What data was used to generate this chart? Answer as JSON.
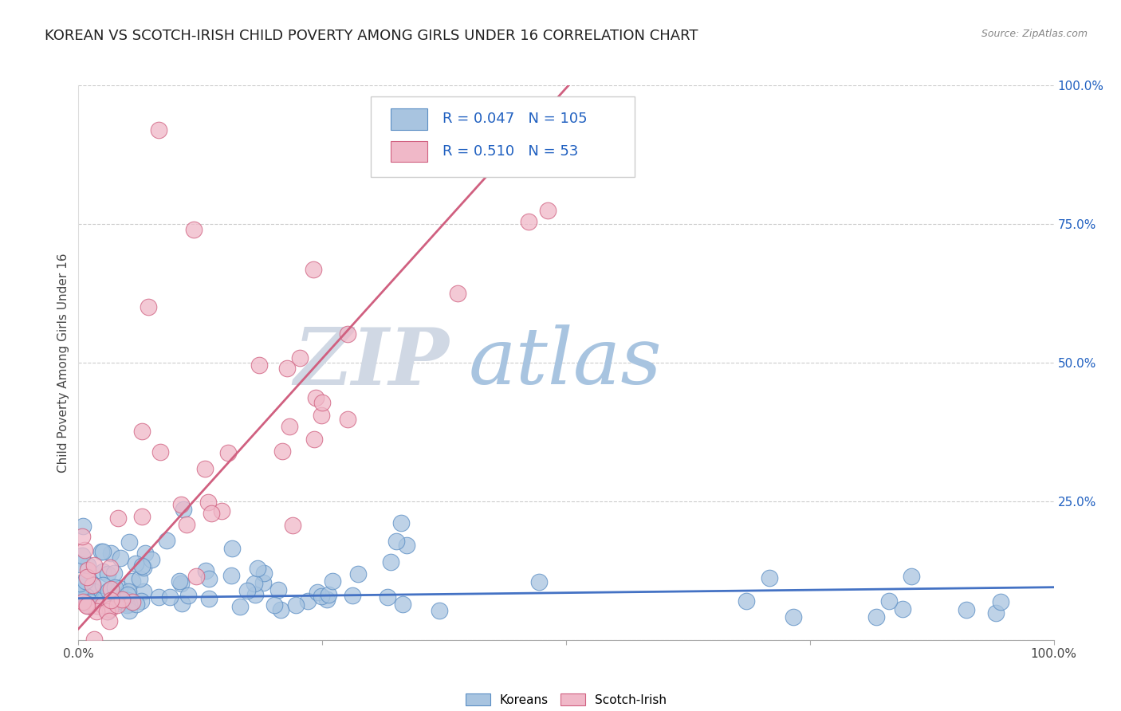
{
  "title": "KOREAN VS SCOTCH-IRISH CHILD POVERTY AMONG GIRLS UNDER 16 CORRELATION CHART",
  "source": "Source: ZipAtlas.com",
  "ylabel": "Child Poverty Among Girls Under 16",
  "korean_color": "#a8c4e0",
  "korean_edge_color": "#5b8ec4",
  "scotch_color": "#f0b8c8",
  "scotch_edge_color": "#d06080",
  "korean_line_color": "#4472c4",
  "scotch_line_color": "#d06080",
  "korean_R": 0.047,
  "korean_N": 105,
  "scotch_R": 0.51,
  "scotch_N": 53,
  "watermark_zip": "ZIP",
  "watermark_atlas": "atlas",
  "watermark_zip_color": "#d0d8e4",
  "watermark_atlas_color": "#a8c4e0",
  "legend_color": "#2060c0",
  "background_color": "#ffffff",
  "title_fontsize": 13,
  "label_fontsize": 11,
  "tick_fontsize": 11,
  "korean_slope": 0.02,
  "korean_intercept": 0.075,
  "scotch_slope": 1.95,
  "scotch_intercept": 0.02
}
